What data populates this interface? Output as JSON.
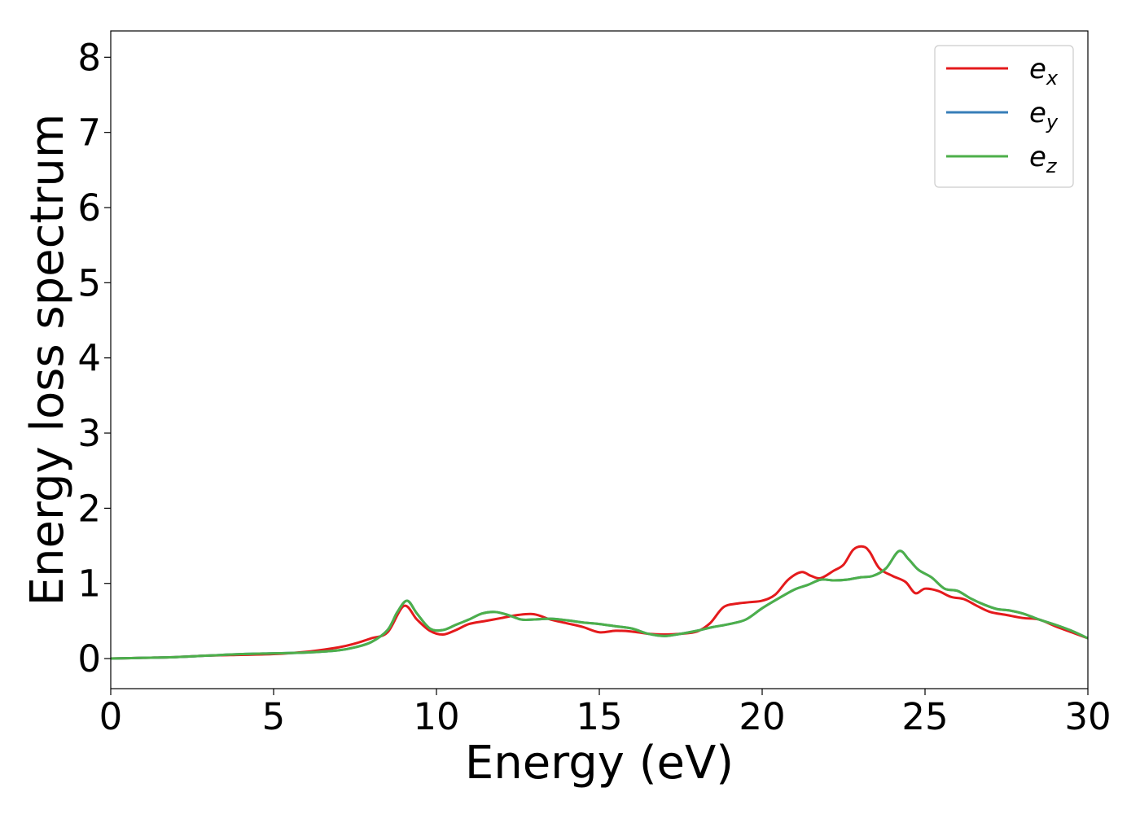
{
  "chart_data": {
    "type": "line",
    "title": "",
    "xlabel": "Energy (eV)",
    "ylabel": "Energy loss spectrum",
    "xlim": [
      0,
      30
    ],
    "ylim": [
      -0.4,
      8.35
    ],
    "xticks": [
      0,
      5,
      10,
      15,
      20,
      25,
      30
    ],
    "yticks": [
      0,
      1,
      2,
      3,
      4,
      5,
      6,
      7,
      8
    ],
    "grid": false,
    "legend_position": "top-right",
    "series": [
      {
        "name": "e_x",
        "legend_base": "e",
        "legend_sub": "x",
        "color": "#e41a1c",
        "x": [
          0,
          1,
          2,
          3,
          4,
          5,
          6,
          7,
          7.5,
          8,
          8.5,
          9.0,
          9.4,
          9.8,
          10.2,
          10.6,
          11,
          11.5,
          12,
          12.5,
          13,
          13.5,
          14,
          14.5,
          15,
          15.5,
          16,
          16.5,
          17,
          17.5,
          18,
          18.4,
          18.8,
          19.2,
          19.6,
          20,
          20.4,
          20.8,
          21.2,
          21.5,
          21.8,
          22.2,
          22.5,
          22.8,
          23.1,
          23.3,
          23.6,
          24.0,
          24.4,
          24.7,
          25.0,
          25.4,
          25.8,
          26.2,
          26.6,
          27.0,
          27.5,
          28,
          28.5,
          29,
          29.5,
          30
        ],
        "y": [
          0.0,
          0.01,
          0.02,
          0.04,
          0.05,
          0.06,
          0.09,
          0.15,
          0.2,
          0.27,
          0.35,
          0.7,
          0.52,
          0.37,
          0.32,
          0.38,
          0.46,
          0.5,
          0.54,
          0.58,
          0.59,
          0.52,
          0.47,
          0.42,
          0.35,
          0.37,
          0.36,
          0.33,
          0.32,
          0.33,
          0.36,
          0.47,
          0.68,
          0.73,
          0.75,
          0.77,
          0.85,
          1.05,
          1.15,
          1.1,
          1.07,
          1.17,
          1.25,
          1.45,
          1.49,
          1.42,
          1.2,
          1.1,
          1.02,
          0.87,
          0.93,
          0.9,
          0.82,
          0.79,
          0.7,
          0.62,
          0.58,
          0.54,
          0.52,
          0.43,
          0.35,
          0.27
        ]
      },
      {
        "name": "e_y",
        "legend_base": "e",
        "legend_sub": "y",
        "color": "#377eb8",
        "x": [
          0,
          1,
          2,
          3,
          4,
          5,
          6,
          7,
          7.5,
          8,
          8.5,
          8.8,
          9.1,
          9.4,
          9.8,
          10.2,
          10.6,
          11,
          11.4,
          11.8,
          12.2,
          12.6,
          13,
          13.5,
          14,
          14.5,
          15,
          15.5,
          16,
          16.5,
          17,
          17.5,
          18,
          18.5,
          19,
          19.5,
          20,
          20.5,
          21,
          21.4,
          21.8,
          22.2,
          22.6,
          23.0,
          23.4,
          23.8,
          24.2,
          24.5,
          24.8,
          25.2,
          25.6,
          26.0,
          26.4,
          26.8,
          27.2,
          27.6,
          28,
          28.5,
          29,
          29.5,
          30
        ],
        "y": [
          0.0,
          0.01,
          0.02,
          0.04,
          0.06,
          0.07,
          0.08,
          0.11,
          0.15,
          0.22,
          0.38,
          0.62,
          0.77,
          0.6,
          0.4,
          0.38,
          0.45,
          0.52,
          0.6,
          0.62,
          0.58,
          0.52,
          0.52,
          0.53,
          0.51,
          0.48,
          0.46,
          0.43,
          0.4,
          0.33,
          0.3,
          0.33,
          0.37,
          0.42,
          0.46,
          0.52,
          0.67,
          0.8,
          0.92,
          0.98,
          1.05,
          1.04,
          1.05,
          1.08,
          1.1,
          1.2,
          1.43,
          1.32,
          1.18,
          1.08,
          0.93,
          0.9,
          0.8,
          0.72,
          0.66,
          0.64,
          0.6,
          0.52,
          0.45,
          0.37,
          0.27
        ]
      },
      {
        "name": "e_z",
        "legend_base": "e",
        "legend_sub": "z",
        "color": "#4daf4a",
        "x": [
          0,
          1,
          2,
          3,
          4,
          5,
          6,
          7,
          7.5,
          8,
          8.5,
          8.8,
          9.1,
          9.4,
          9.8,
          10.2,
          10.6,
          11,
          11.4,
          11.8,
          12.2,
          12.6,
          13,
          13.5,
          14,
          14.5,
          15,
          15.5,
          16,
          16.5,
          17,
          17.5,
          18,
          18.5,
          19,
          19.5,
          20,
          20.5,
          21,
          21.4,
          21.8,
          22.2,
          22.6,
          23.0,
          23.4,
          23.8,
          24.2,
          24.5,
          24.8,
          25.2,
          25.6,
          26.0,
          26.4,
          26.8,
          27.2,
          27.6,
          28,
          28.5,
          29,
          29.5,
          30
        ],
        "y": [
          0.0,
          0.01,
          0.02,
          0.04,
          0.06,
          0.07,
          0.08,
          0.11,
          0.15,
          0.22,
          0.38,
          0.62,
          0.77,
          0.6,
          0.4,
          0.38,
          0.45,
          0.52,
          0.6,
          0.62,
          0.58,
          0.52,
          0.52,
          0.53,
          0.51,
          0.48,
          0.46,
          0.43,
          0.4,
          0.33,
          0.3,
          0.33,
          0.37,
          0.42,
          0.46,
          0.52,
          0.67,
          0.8,
          0.92,
          0.98,
          1.05,
          1.04,
          1.05,
          1.08,
          1.1,
          1.2,
          1.43,
          1.32,
          1.18,
          1.08,
          0.93,
          0.9,
          0.8,
          0.72,
          0.66,
          0.64,
          0.6,
          0.52,
          0.45,
          0.37,
          0.27
        ]
      }
    ]
  }
}
